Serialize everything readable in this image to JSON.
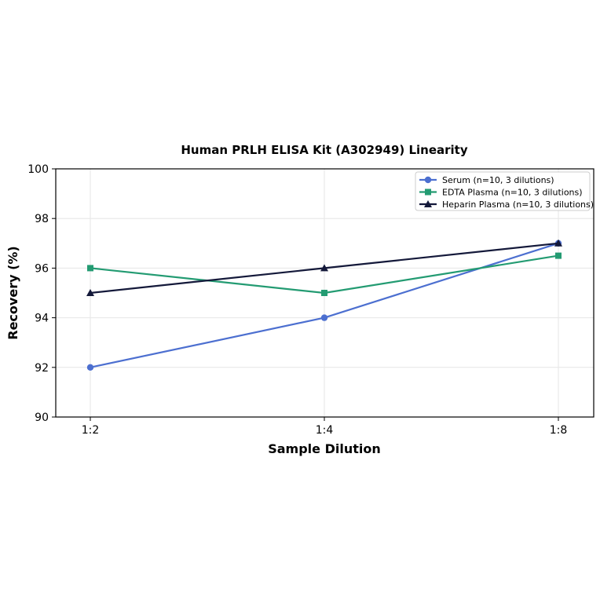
{
  "chart_data": {
    "type": "line",
    "title": "Human PRLH ELISA Kit (A302949) Linearity",
    "xlabel": "Sample Dilution",
    "ylabel": "Recovery (%)",
    "categories": [
      "1:2",
      "1:4",
      "1:8"
    ],
    "ylim": [
      90,
      100
    ],
    "yticks": [
      "90",
      "92",
      "94",
      "96",
      "98",
      "100"
    ],
    "grid": true,
    "legend_position": "top-right",
    "series": [
      {
        "name": "Serum (n=10, 3 dilutions)",
        "values": [
          92,
          94,
          97
        ],
        "color": "#4c6fd0",
        "marker": "circle"
      },
      {
        "name": "EDTA Plasma (n=10, 3 dilutions)",
        "values": [
          96,
          95,
          96.5
        ],
        "color": "#239b72",
        "marker": "square"
      },
      {
        "name": "Heparin Plasma (n=10, 3 dilutions)",
        "values": [
          95,
          96,
          97
        ],
        "color": "#14193a",
        "marker": "triangle"
      }
    ]
  }
}
